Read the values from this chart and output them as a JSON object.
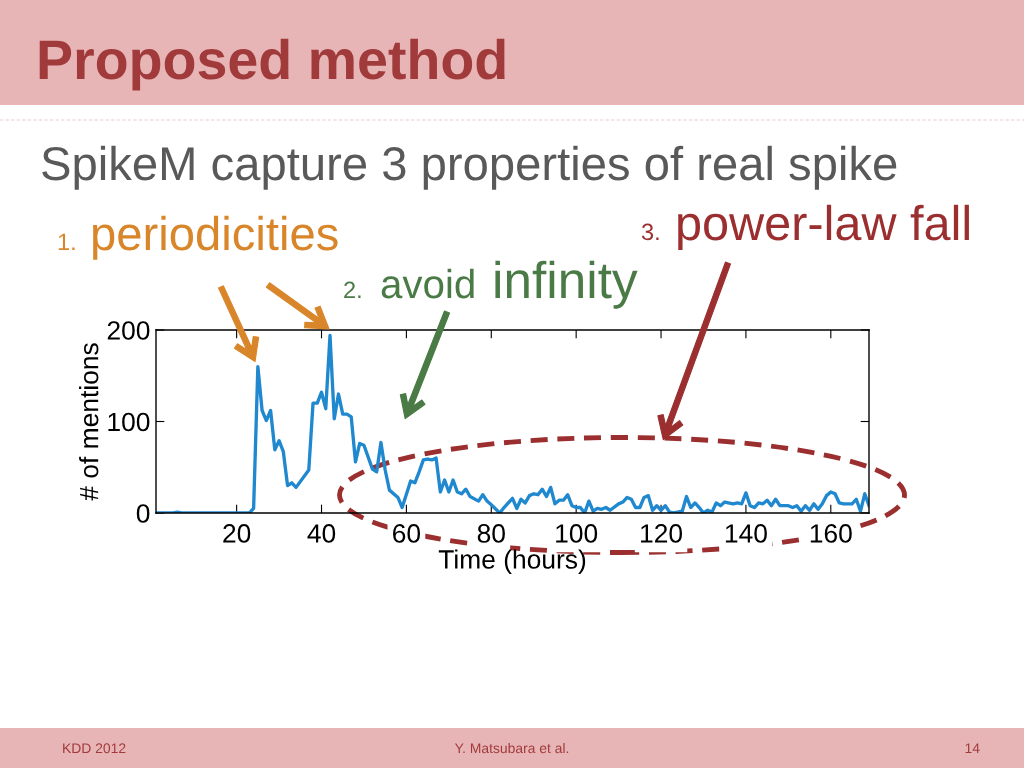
{
  "chart_data": {
    "type": "line",
    "title": "Proposed method",
    "subtitle": "SpikeM capture 3 properties of real spike",
    "xlabel": "Time (hours)",
    "ylabel": "# of mentions",
    "annotations": [
      "1.",
      "periodicities",
      "2.",
      "avoid",
      "infinity",
      "3.",
      "power-law fall",
      "KDD 2012",
      "Y. Matsubara et al.",
      "14"
    ],
    "xlim": [
      1,
      169
    ],
    "xticks": [
      20,
      40,
      60,
      80,
      100,
      120,
      140,
      160
    ],
    "ylim": [
      0,
      200
    ],
    "yticks": [
      0,
      100,
      200
    ],
    "line_style": "solid",
    "series": [
      {
        "color": "#1f88cf",
        "x": [
          1,
          5,
          6,
          7,
          23,
          24,
          25,
          26,
          27,
          28,
          29,
          30,
          31,
          32,
          33,
          34,
          37,
          38,
          39,
          40,
          41,
          42,
          43,
          44,
          45,
          46,
          47,
          48,
          49,
          50,
          52,
          53,
          54,
          55,
          56,
          58,
          59,
          61,
          62,
          63,
          64,
          65,
          66,
          67,
          68,
          69,
          70,
          71,
          72,
          73,
          74,
          75,
          77,
          78,
          79,
          80,
          82,
          83,
          85,
          86,
          87,
          88,
          89,
          90,
          91,
          92,
          93,
          94,
          95,
          96,
          97,
          98,
          99,
          100,
          101,
          102,
          103,
          104,
          105,
          106,
          107,
          108,
          110,
          111,
          112,
          113,
          114,
          115,
          116,
          117,
          118,
          119,
          120,
          121,
          122,
          123,
          125,
          126,
          127,
          128,
          129,
          130,
          131,
          132,
          133,
          134,
          135,
          137,
          138,
          139,
          140,
          141,
          142,
          143,
          144,
          145,
          146,
          147,
          148,
          150,
          151,
          152,
          153,
          154,
          155,
          156,
          157,
          158,
          159,
          160,
          161,
          162,
          163,
          165,
          166,
          167,
          168,
          169
        ],
        "values": [
          0,
          0,
          1,
          0,
          0,
          5,
          160,
          112,
          101,
          112,
          69,
          79,
          67,
          30,
          33,
          28,
          47,
          120,
          120,
          132,
          114,
          194,
          103,
          130,
          108,
          108,
          105,
          56,
          76,
          74,
          48,
          45,
          77,
          47,
          25,
          17,
          6,
          35,
          33,
          45,
          58,
          59,
          58,
          60,
          23,
          36,
          23,
          36,
          23,
          21,
          26,
          18,
          13,
          20,
          13,
          9,
          0,
          6,
          16,
          5,
          15,
          11,
          19,
          21,
          20,
          26,
          18,
          28,
          10,
          14,
          14,
          20,
          8,
          6,
          6,
          0,
          13,
          2,
          5,
          4,
          6,
          3,
          10,
          12,
          17,
          15,
          6,
          6,
          17,
          19,
          3,
          8,
          3,
          8,
          1,
          0,
          2,
          18,
          6,
          11,
          6,
          0,
          3,
          1,
          11,
          8,
          12,
          10,
          11,
          10,
          22,
          8,
          6,
          11,
          10,
          14,
          8,
          15,
          8,
          8,
          6,
          8,
          2,
          8,
          3,
          10,
          4,
          10,
          19,
          23,
          21,
          11,
          10,
          10,
          15,
          2,
          21,
          8
        ]
      }
    ]
  }
}
